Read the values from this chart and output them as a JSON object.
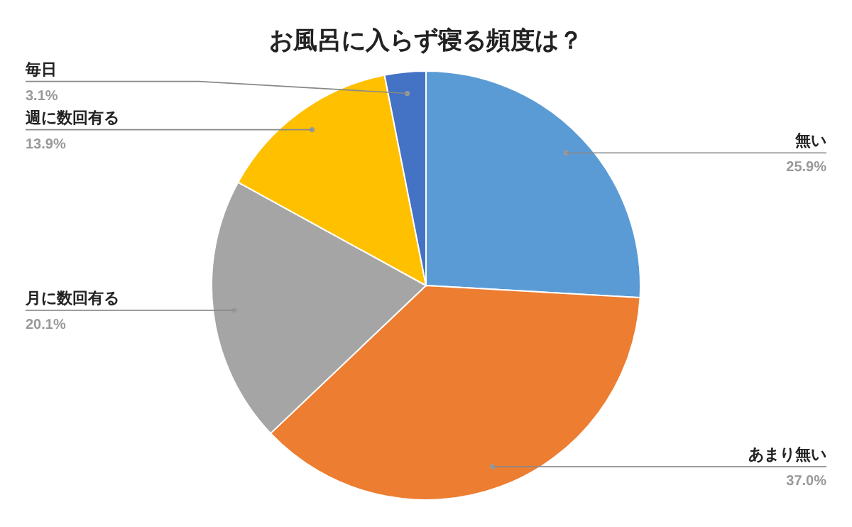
{
  "chart_data": {
    "type": "pie",
    "title": "お風呂に入らず寝る頻度は？",
    "categories": [
      "無い",
      "あまり無い",
      "月に数回有る",
      "週に数回有る",
      "毎日"
    ],
    "values": [
      25.9,
      37.0,
      20.1,
      13.9,
      3.1
    ],
    "colors": [
      "#5b9bd5",
      "#ed7d31",
      "#a5a5a5",
      "#ffc000",
      "#4472c4"
    ],
    "value_labels": [
      "25.9%",
      "37.0%",
      "20.1%",
      "13.9%",
      "3.1%"
    ]
  }
}
